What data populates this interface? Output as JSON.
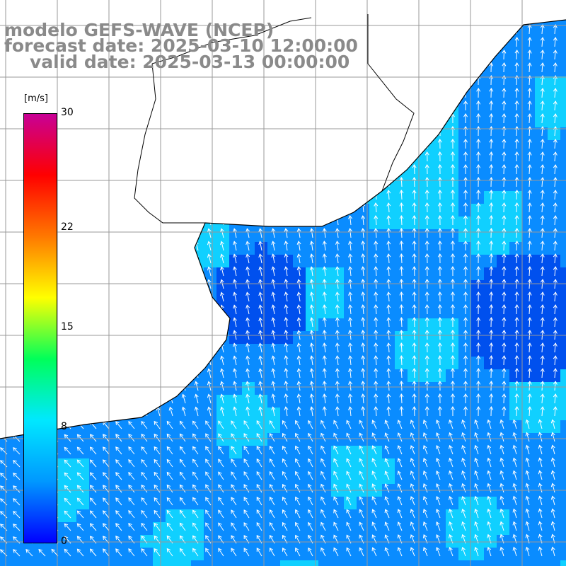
{
  "header": {
    "line1": "modelo GEFS-WAVE (NCEP)",
    "line2": "forecast date: 2025-03-10 12:00:00",
    "line3": "valid date: 2025-03-13 00:00:00"
  },
  "colorbar": {
    "unit": "[m/s]",
    "ticks": [
      "30",
      "22",
      "15",
      "8",
      "0"
    ],
    "tick_values": [
      30,
      22,
      15,
      8,
      0
    ],
    "colors": [
      "#0000ff",
      "#0098ff",
      "#00e8ff",
      "#00ff5a",
      "#ffff00",
      "#ff7800",
      "#ff0000",
      "#c80096"
    ]
  },
  "map": {
    "field": "wind speed with direction arrows",
    "ocean_colors": {
      "deep_blue": "#0050ee",
      "mid_blue": "#0a8cff",
      "light_cyan": "#10d0ff"
    },
    "land_color": "#ffffff",
    "coastline_color": "#000000",
    "grid_color": "#999999",
    "arrow_color": "#ffffff",
    "dominant_wind_direction": "from south / southeast (arrows pointing north to northwest)"
  }
}
